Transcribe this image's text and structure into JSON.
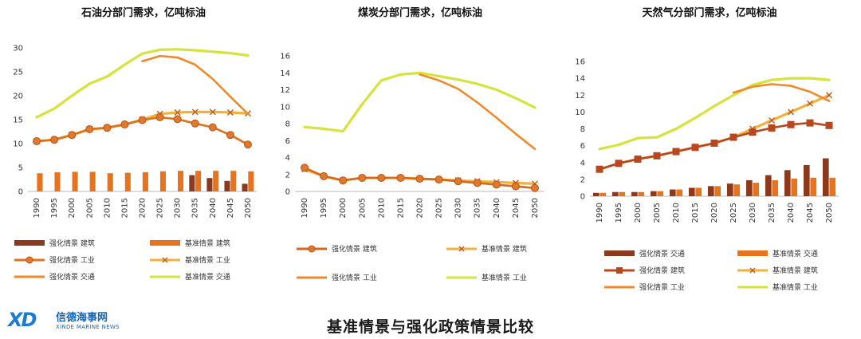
{
  "page": {
    "caption": "基准情景与强化政策情景比较",
    "logo": {
      "mark": "XD",
      "name_cn": "信德海事网",
      "name_en": "XINDE MARINE NEWS"
    }
  },
  "chart_data": [
    {
      "type": "bar+line",
      "title": "石油分部门需求，亿吨标油",
      "x": [
        "1990",
        "1995",
        "2000",
        "2005",
        "2010",
        "2015",
        "2020",
        "2025",
        "2030",
        "2035",
        "2040",
        "2045",
        "2050"
      ],
      "ylim": [
        0,
        30
      ],
      "yticks": [
        0,
        5,
        10,
        15,
        20,
        25,
        30
      ],
      "series": [
        {
          "name": "强化情景  建筑",
          "kind": "bar",
          "color": "#8b3a1e",
          "values": [
            null,
            null,
            null,
            null,
            null,
            null,
            null,
            null,
            null,
            3.4,
            2.8,
            2.2,
            1.6
          ]
        },
        {
          "name": "基准情景  建筑",
          "kind": "bar",
          "color": "#e8731c",
          "values": [
            3.8,
            4.0,
            4.1,
            4.1,
            3.8,
            3.9,
            4.0,
            4.2,
            4.3,
            4.3,
            4.3,
            4.3,
            4.2
          ]
        },
        {
          "name": "强化情景  工业",
          "kind": "line",
          "marker": "circle",
          "color": "#e0701a",
          "values": [
            10.5,
            10.8,
            11.8,
            13.0,
            13.3,
            14.0,
            14.9,
            15.5,
            15.1,
            14.2,
            13.4,
            11.8,
            9.8
          ]
        },
        {
          "name": "基准情景  工业",
          "kind": "line",
          "marker": "x",
          "color": "#f2b13a",
          "values": [
            10.5,
            10.8,
            11.8,
            13.0,
            13.3,
            14.0,
            15.0,
            16.2,
            16.5,
            16.6,
            16.6,
            16.5,
            16.3
          ]
        },
        {
          "name": "强化情景  交通",
          "kind": "line",
          "color": "#ef8a2c",
          "values": [
            null,
            null,
            null,
            null,
            null,
            null,
            27.2,
            28.3,
            28.0,
            26.5,
            23.5,
            19.8,
            16.2
          ]
        },
        {
          "name": "基准情景  交通",
          "kind": "line",
          "color": "#d6e33a",
          "values": [
            15.5,
            17.3,
            20.0,
            22.5,
            24.0,
            26.5,
            28.8,
            29.6,
            29.7,
            29.5,
            29.2,
            28.9,
            28.4
          ]
        }
      ]
    },
    {
      "type": "line",
      "title": "煤炭分部门需求，亿吨标油",
      "x": [
        "1990",
        "1995",
        "2000",
        "2005",
        "2010",
        "2015",
        "2020",
        "2025",
        "2030",
        "2035",
        "2040",
        "2045",
        "2050"
      ],
      "ylim": [
        0,
        16
      ],
      "yticks": [
        0,
        2,
        4,
        6,
        8,
        10,
        12,
        14,
        16
      ],
      "series": [
        {
          "name": "强化情景  建筑",
          "kind": "line",
          "marker": "circle",
          "color": "#d9681a",
          "values": [
            2.8,
            1.8,
            1.3,
            1.6,
            1.6,
            1.6,
            1.5,
            1.4,
            1.2,
            1.0,
            0.8,
            0.6,
            0.4
          ]
        },
        {
          "name": "基准情景  建筑",
          "kind": "line",
          "marker": "x",
          "color": "#f2b13a",
          "values": [
            2.6,
            1.8,
            1.3,
            1.6,
            1.6,
            1.6,
            1.5,
            1.4,
            1.3,
            1.2,
            1.1,
            1.0,
            0.9
          ]
        },
        {
          "name": "强化情景  工业",
          "kind": "line",
          "color": "#ef8a2c",
          "values": [
            null,
            null,
            null,
            null,
            null,
            null,
            13.8,
            13.1,
            12.1,
            10.5,
            8.7,
            6.8,
            5.0
          ]
        },
        {
          "name": "基准情景  工业",
          "kind": "line",
          "color": "#d6e33a",
          "values": [
            7.6,
            7.4,
            7.1,
            10.3,
            13.1,
            13.8,
            14.0,
            13.6,
            13.2,
            12.7,
            12.0,
            11.0,
            9.9
          ]
        }
      ]
    },
    {
      "type": "bar+line",
      "title": "天然气分部门需求，亿吨标油",
      "x": [
        "1990",
        "1995",
        "2000",
        "2005",
        "2010",
        "2015",
        "2020",
        "2025",
        "2030",
        "2035",
        "2040",
        "2045",
        "2050"
      ],
      "ylim": [
        0,
        16
      ],
      "yticks": [
        0,
        2,
        4,
        6,
        8,
        10,
        12,
        14,
        16
      ],
      "series": [
        {
          "name": "强化情景  交通",
          "kind": "bar",
          "color": "#8b3a1e",
          "values": [
            0.4,
            0.5,
            0.5,
            0.6,
            0.8,
            1.0,
            1.2,
            1.5,
            1.9,
            2.5,
            3.1,
            3.7,
            4.5
          ]
        },
        {
          "name": "基准情景  交通",
          "kind": "bar",
          "color": "#e8731c",
          "values": [
            0.4,
            0.5,
            0.5,
            0.6,
            0.8,
            1.0,
            1.2,
            1.4,
            1.6,
            1.9,
            2.1,
            2.2,
            2.2
          ]
        },
        {
          "name": "强化情景  建筑",
          "kind": "line",
          "marker": "square",
          "color": "#b8461e",
          "values": [
            3.2,
            3.9,
            4.4,
            4.8,
            5.3,
            5.8,
            6.3,
            7.0,
            7.6,
            8.1,
            8.5,
            8.7,
            8.4
          ]
        },
        {
          "name": "基准情景  建筑",
          "kind": "line",
          "marker": "x",
          "color": "#f2b13a",
          "values": [
            3.2,
            3.9,
            4.4,
            4.8,
            5.3,
            5.8,
            6.3,
            7.0,
            8.0,
            9.0,
            10.0,
            11.0,
            12.0
          ]
        },
        {
          "name": "强化情景  工业",
          "kind": "line",
          "color": "#ef8a2c",
          "values": [
            null,
            null,
            null,
            null,
            null,
            null,
            null,
            12.3,
            13.0,
            13.3,
            13.1,
            12.4,
            11.3
          ]
        },
        {
          "name": "基准情景  工业",
          "kind": "line",
          "color": "#d6e33a",
          "values": [
            5.6,
            6.1,
            6.9,
            7.0,
            8.0,
            9.3,
            10.7,
            12.0,
            13.2,
            13.8,
            14.0,
            14.0,
            13.8
          ]
        }
      ]
    }
  ]
}
